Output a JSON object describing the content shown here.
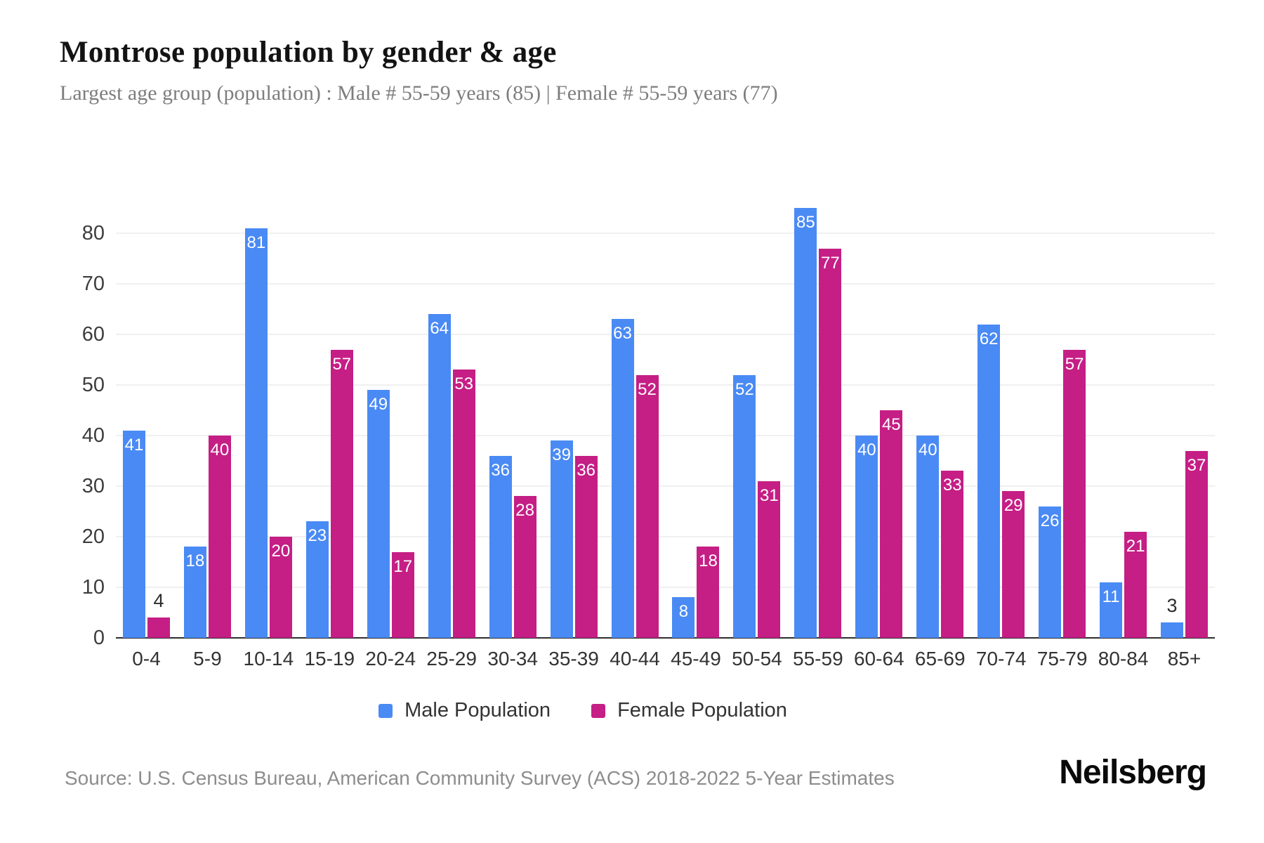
{
  "header": {
    "title": "Montrose population by gender & age",
    "subtitle": "Largest age group (population) : Male # 55-59 years (85) | Female # 55-59 years (77)"
  },
  "chart_data": {
    "type": "bar",
    "title": "Montrose population by gender & age",
    "categories": [
      "0-4",
      "5-9",
      "10-14",
      "15-19",
      "20-24",
      "25-29",
      "30-34",
      "35-39",
      "40-44",
      "45-49",
      "50-54",
      "55-59",
      "60-64",
      "65-69",
      "70-74",
      "75-79",
      "80-84",
      "85+"
    ],
    "series": [
      {
        "name": "Male Population",
        "color": "#4a8af4",
        "values": [
          41,
          18,
          81,
          23,
          49,
          64,
          36,
          39,
          63,
          8,
          52,
          85,
          40,
          40,
          62,
          26,
          11,
          3
        ]
      },
      {
        "name": "Female Population",
        "color": "#c51e85",
        "values": [
          4,
          40,
          20,
          57,
          17,
          53,
          28,
          36,
          52,
          18,
          31,
          77,
          45,
          33,
          29,
          57,
          21,
          37
        ]
      }
    ],
    "xlabel": "",
    "ylabel": "",
    "yticks": [
      0,
      10,
      20,
      30,
      40,
      50,
      60,
      70,
      80
    ],
    "ylim": [
      0,
      88
    ],
    "grid": true,
    "legend_position": "bottom",
    "colors": {
      "grid": "#f0f0f0",
      "axis": "#2e2e2e",
      "tick_text": "#3d3d3d",
      "bar_label_inside": "#ffffff",
      "bar_label_outside": "#2d2d2d"
    }
  },
  "legend": {
    "male": "Male Population",
    "female": "Female Population"
  },
  "footer": {
    "source": "Source: U.S. Census Bureau, American Community Survey (ACS) 2018-2022 5-Year Estimates",
    "logo": "Neilsberg"
  }
}
